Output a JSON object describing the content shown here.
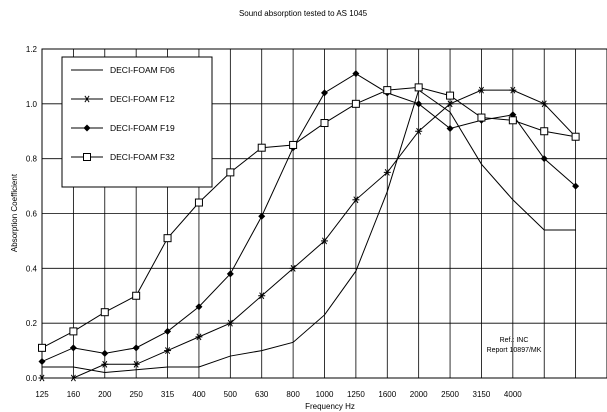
{
  "chart_data": {
    "type": "line",
    "title": "Sound absorption tested to AS 1045",
    "xlabel": "Frequency Hz",
    "ylabel": "Absorption Coefficient",
    "categories": [
      "125",
      "160",
      "200",
      "250",
      "315",
      "400",
      "500",
      "630",
      "800",
      "1000",
      "1250",
      "1600",
      "2000",
      "2500",
      "3150",
      "4000",
      "",
      ""
    ],
    "y_ticks": [
      "0.0",
      "0.2",
      "0.4",
      "0.6",
      "0.8",
      "1.0",
      "1.2"
    ],
    "ylim": [
      0,
      1.2
    ],
    "grid": true,
    "legend_position": "top-left",
    "series": [
      {
        "name": "DECI-FOAM F06",
        "marker": "none",
        "values": [
          0.04,
          0.04,
          0.02,
          0.03,
          0.04,
          0.04,
          0.08,
          0.1,
          0.13,
          0.23,
          0.39,
          0.68,
          1.05,
          0.97,
          0.78,
          0.65,
          0.54,
          0.54
        ]
      },
      {
        "name": "DECI-FOAM F12",
        "marker": "asterisk",
        "values": [
          0.0,
          0.0,
          0.05,
          0.05,
          0.1,
          0.15,
          0.2,
          0.3,
          0.4,
          0.5,
          0.65,
          0.75,
          0.9,
          1.0,
          1.05,
          1.05,
          1.0,
          0.88
        ]
      },
      {
        "name": "DECI-FOAM F19",
        "marker": "diamond",
        "values": [
          0.06,
          0.11,
          0.09,
          0.11,
          0.17,
          0.26,
          0.38,
          0.59,
          0.84,
          1.04,
          1.11,
          1.04,
          1.0,
          0.91,
          0.94,
          0.96,
          0.8,
          0.7
        ]
      },
      {
        "name": "DECI-FOAM F32",
        "marker": "square",
        "values": [
          0.11,
          0.17,
          0.24,
          0.3,
          0.51,
          0.64,
          0.75,
          0.84,
          0.85,
          0.93,
          1.0,
          1.05,
          1.06,
          1.03,
          0.95,
          0.94,
          0.9,
          0.88
        ]
      }
    ],
    "annotations": [
      "Ref.: INC",
      "Report 10897/MK"
    ]
  }
}
